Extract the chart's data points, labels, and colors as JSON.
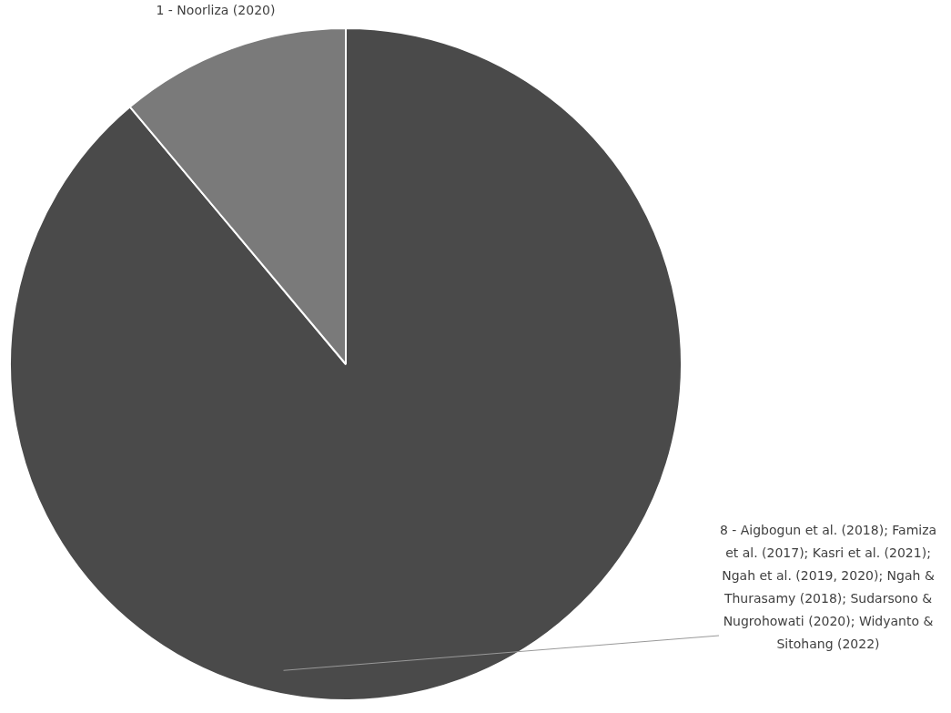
{
  "chart_data": {
    "type": "pie",
    "categories": [
      "8 - Aigbogun et al. (2018); Famiza et al. (2017); Kasri et al. (2021); Ngah et al. (2019, 2020); Ngah & Thurasamy (2018); Sudarsono & Nugrohowati (2020); Widyanto & Sitohang (2022)",
      "1 - Noorliza (2020)"
    ],
    "values": [
      8,
      1
    ],
    "colors": [
      "#4a4a4a",
      "#7a7a7a"
    ],
    "legend": false
  }
}
